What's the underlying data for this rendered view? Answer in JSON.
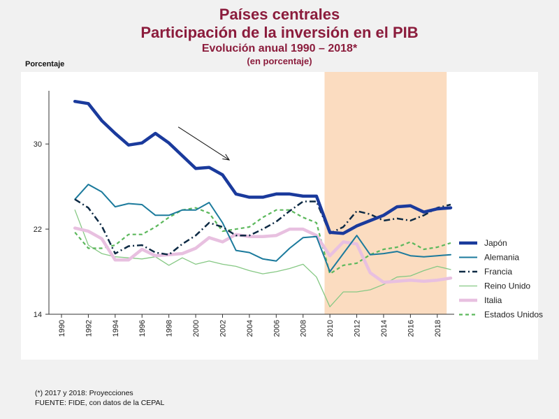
{
  "title_lines": [
    "Países centrales",
    "Participación de la inversión en el PIB",
    "Evolución anual 1990 – 2018*",
    "(en porcentaje)"
  ],
  "footer": {
    "note": "(*) 2017 y 2018: Proyecciones",
    "source": "FUENTE: FIDE, con datos de la CEPAL"
  },
  "chart_data": {
    "type": "line",
    "title": "Países centrales",
    "ylabel": "Porcentaje",
    "xlabel": "",
    "ylim": [
      14,
      35
    ],
    "yticks": [
      14,
      22,
      30
    ],
    "xlim": [
      1990,
      2019
    ],
    "xticks": [
      1990,
      1992,
      1994,
      1996,
      1998,
      2000,
      2002,
      2004,
      2006,
      2008,
      2010,
      2012,
      2014,
      2016,
      2018
    ],
    "shaded_region": {
      "x_from": 2009.6,
      "x_to": 2018.7,
      "color": "#fbdcc0"
    },
    "annotation": {
      "type": "arrow",
      "from": [
        1998.7,
        31.6
      ],
      "to": [
        2002.5,
        28.5
      ]
    },
    "grid": false,
    "legend_position": "right",
    "x": [
      1991,
      1992,
      1993,
      1994,
      1995,
      1996,
      1997,
      1998,
      1999,
      2000,
      2001,
      2002,
      2003,
      2004,
      2005,
      2006,
      2007,
      2008,
      2009,
      2010,
      2011,
      2012,
      2013,
      2014,
      2015,
      2016,
      2017,
      2018,
      2019
    ],
    "series": [
      {
        "name": "Japón",
        "color": "#1a3a9c",
        "dash": "",
        "width": 4.5,
        "values": [
          34.0,
          33.8,
          32.2,
          31.0,
          29.9,
          30.1,
          31.0,
          30.1,
          28.9,
          27.7,
          27.8,
          27.1,
          25.3,
          25.0,
          25.0,
          25.3,
          25.3,
          25.1,
          25.1,
          21.7,
          21.6,
          22.3,
          22.8,
          23.3,
          24.1,
          24.2,
          23.6,
          23.9,
          24.0
        ]
      },
      {
        "name": "Alemania",
        "color": "#1b7a9c",
        "dash": "",
        "width": 2,
        "values": [
          24.8,
          26.2,
          25.5,
          24.1,
          24.4,
          24.3,
          23.3,
          23.3,
          23.8,
          23.8,
          24.5,
          22.6,
          20.0,
          19.8,
          19.2,
          19.0,
          20.2,
          21.2,
          21.3,
          18.0,
          19.7,
          21.4,
          19.6,
          19.7,
          19.9,
          19.5,
          19.4,
          19.5,
          19.6
        ]
      },
      {
        "name": "Francia",
        "color": "#0d2a44",
        "dash": "9,4,2,4",
        "width": 2.5,
        "values": [
          24.8,
          24.0,
          22.3,
          19.7,
          20.4,
          20.5,
          19.8,
          19.6,
          20.6,
          21.4,
          22.6,
          22.2,
          21.4,
          21.4,
          22.0,
          22.7,
          23.7,
          24.6,
          24.6,
          21.6,
          22.2,
          23.7,
          23.4,
          22.8,
          23.0,
          22.8,
          23.3,
          24.0,
          24.3
        ]
      },
      {
        "name": "Reino Unido",
        "color": "#86c884",
        "dash": "",
        "width": 1.3,
        "values": [
          23.8,
          20.5,
          19.7,
          19.4,
          19.3,
          19.2,
          19.4,
          18.6,
          19.3,
          18.7,
          19.0,
          18.7,
          18.5,
          18.1,
          17.8,
          18.0,
          18.3,
          18.7,
          17.5,
          14.7,
          16.1,
          16.1,
          16.3,
          16.8,
          17.5,
          17.6,
          18.1,
          18.5,
          18.2
        ]
      },
      {
        "name": "Italia",
        "color": "#e8c0e0",
        "dash": "",
        "width": 4.5,
        "values": [
          22.1,
          21.8,
          21.1,
          19.1,
          19.1,
          20.1,
          19.5,
          19.6,
          19.7,
          20.2,
          21.2,
          20.8,
          21.5,
          21.3,
          21.3,
          21.4,
          22.0,
          22.0,
          21.4,
          19.5,
          20.8,
          20.6,
          17.9,
          17.0,
          17.1,
          17.2,
          17.1,
          17.2,
          17.4
        ]
      },
      {
        "name": "Estados Unidos",
        "color": "#5cb85c",
        "dash": "5,4",
        "width": 2.2,
        "values": [
          21.7,
          20.2,
          20.2,
          20.5,
          21.5,
          21.5,
          22.2,
          23.1,
          23.8,
          24.0,
          23.5,
          21.8,
          22.0,
          22.2,
          23.1,
          23.8,
          23.8,
          23.1,
          22.6,
          17.8,
          18.6,
          18.8,
          19.6,
          20.1,
          20.3,
          20.8,
          20.1,
          20.3,
          20.7
        ]
      }
    ]
  }
}
